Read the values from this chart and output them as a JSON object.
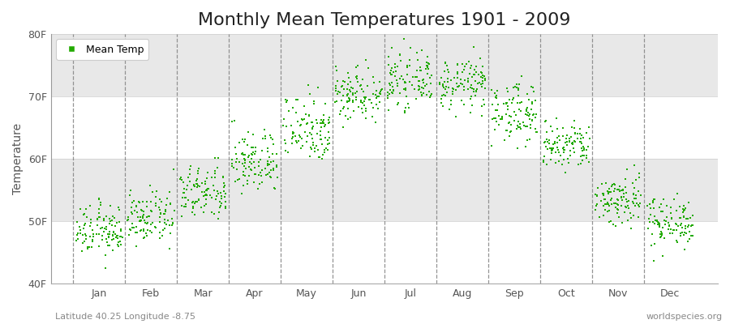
{
  "title": "Monthly Mean Temperatures 1901 - 2009",
  "ylabel": "Temperature",
  "marker_color": "#22aa00",
  "legend_label": "Mean Temp",
  "subtitle": "Latitude 40.25 Longitude -8.75",
  "watermark": "worldspecies.org",
  "ylim": [
    40,
    80
  ],
  "yticks": [
    40,
    50,
    60,
    70,
    80
  ],
  "ytick_labels": [
    "40F",
    "50F",
    "60F",
    "70F",
    "80F"
  ],
  "months": [
    "Jan",
    "Feb",
    "Mar",
    "Apr",
    "May",
    "Jun",
    "Jul",
    "Aug",
    "Sep",
    "Oct",
    "Nov",
    "Dec"
  ],
  "month_centers": [
    1.0,
    2.0,
    3.0,
    4.0,
    5.0,
    6.0,
    7.0,
    8.0,
    9.0,
    10.0,
    11.0,
    12.0
  ],
  "month_means_f": [
    48.5,
    50.5,
    54.5,
    59.5,
    65.0,
    70.5,
    72.5,
    72.0,
    67.5,
    62.0,
    53.5,
    50.0
  ],
  "month_stds_f": [
    2.0,
    2.0,
    2.2,
    2.5,
    2.8,
    2.2,
    2.0,
    2.0,
    2.4,
    2.0,
    2.2,
    2.0
  ],
  "n_years": 109,
  "bg_color": "#ffffff",
  "plot_bg_color": "#ffffff",
  "band_colors": [
    "#ffffff",
    "#e8e8e8"
  ],
  "vline_color": "#888888",
  "hline_color": "#cccccc",
  "title_fontsize": 16,
  "label_fontsize": 10,
  "tick_fontsize": 9
}
